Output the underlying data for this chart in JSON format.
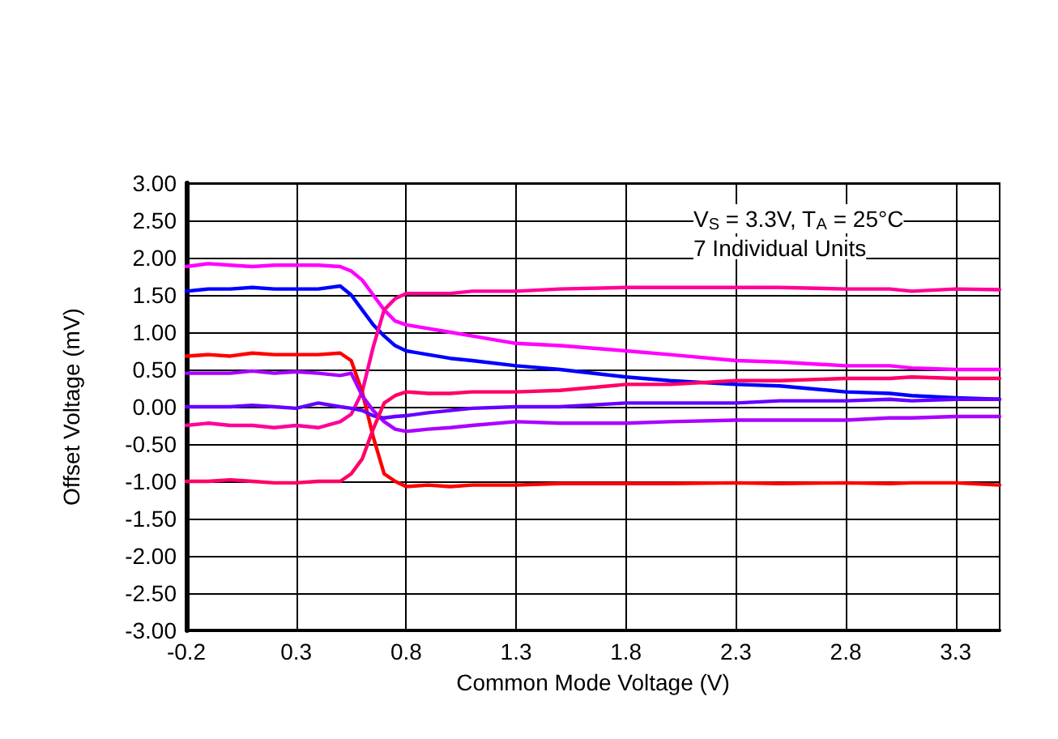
{
  "chart_data": {
    "type": "line",
    "xlabel": "Common Mode Voltage (V)",
    "ylabel": "Offset Voltage (mV)",
    "annotations": [
      "V$_{S}$ = 3.3V, T$_{A}$ = 25°C",
      "7 Individual Units"
    ],
    "xlim": [
      -0.2,
      3.5
    ],
    "xticks": [
      -0.2,
      0.3,
      0.8,
      1.3,
      1.8,
      2.3,
      2.8,
      3.3
    ],
    "ylim": [
      -3,
      3
    ],
    "yticks": [
      {
        "value": -3,
        "label": "-3.00"
      },
      {
        "value": -2.5,
        "label": "-2.50"
      },
      {
        "value": -2,
        "label": "-2.00"
      },
      {
        "value": -1.5,
        "label": "-1.50"
      },
      {
        "value": -1,
        "label": "-1.00"
      },
      {
        "value": -0.5,
        "label": "-0.50"
      },
      {
        "value": 0,
        "label": "0.00"
      },
      {
        "value": 0.5,
        "label": "0.50"
      },
      {
        "value": 1,
        "label": "1.00"
      },
      {
        "value": 1.5,
        "label": "1.50"
      },
      {
        "value": 2,
        "label": "2.00"
      },
      {
        "value": 2.5,
        "label": "2.50"
      },
      {
        "value": 3,
        "label": "3.00"
      }
    ],
    "grid": true,
    "marker": "none",
    "line_style": "solid",
    "x": [
      -0.2,
      -0.1,
      0,
      0.1,
      0.2,
      0.3,
      0.4,
      0.5,
      0.55,
      0.6,
      0.65,
      0.7,
      0.75,
      0.8,
      0.9,
      1.0,
      1.1,
      1.3,
      1.5,
      1.8,
      2.0,
      2.3,
      2.5,
      2.8,
      3.0,
      3.1,
      3.3,
      3.5
    ],
    "series": [
      {
        "color": "#ff00ff",
        "values": [
          1.88,
          1.92,
          1.9,
          1.88,
          1.9,
          1.9,
          1.9,
          1.88,
          1.82,
          1.7,
          1.5,
          1.3,
          1.15,
          1.1,
          1.05,
          1.0,
          0.95,
          0.85,
          0.82,
          0.75,
          0.7,
          0.62,
          0.6,
          0.55,
          0.55,
          0.52,
          0.5,
          0.5
        ]
      },
      {
        "color": "#0000ff",
        "values": [
          1.55,
          1.58,
          1.58,
          1.6,
          1.58,
          1.58,
          1.58,
          1.62,
          1.5,
          1.3,
          1.1,
          0.95,
          0.82,
          0.75,
          0.7,
          0.65,
          0.62,
          0.55,
          0.5,
          0.4,
          0.35,
          0.3,
          0.28,
          0.2,
          0.18,
          0.15,
          0.12,
          0.1
        ]
      },
      {
        "color": "#ff0099",
        "values": [
          -0.25,
          -0.22,
          -0.25,
          -0.25,
          -0.28,
          -0.25,
          -0.28,
          -0.2,
          -0.1,
          0.2,
          0.8,
          1.3,
          1.45,
          1.52,
          1.52,
          1.52,
          1.55,
          1.55,
          1.58,
          1.6,
          1.6,
          1.6,
          1.6,
          1.58,
          1.58,
          1.55,
          1.58,
          1.57
        ]
      },
      {
        "color": "#ff0000",
        "values": [
          0.68,
          0.7,
          0.68,
          0.72,
          0.7,
          0.7,
          0.7,
          0.72,
          0.62,
          0.2,
          -0.4,
          -0.9,
          -1.0,
          -1.07,
          -1.05,
          -1.07,
          -1.05,
          -1.05,
          -1.03,
          -1.03,
          -1.03,
          -1.02,
          -1.03,
          -1.02,
          -1.03,
          -1.02,
          -1.02,
          -1.05
        ]
      },
      {
        "color": "#aa00ff",
        "values": [
          0.45,
          0.45,
          0.45,
          0.48,
          0.45,
          0.47,
          0.45,
          0.42,
          0.45,
          0.15,
          -0.05,
          -0.2,
          -0.3,
          -0.33,
          -0.3,
          -0.28,
          -0.25,
          -0.2,
          -0.22,
          -0.22,
          -0.2,
          -0.18,
          -0.18,
          -0.18,
          -0.15,
          -0.15,
          -0.13,
          -0.13
        ]
      },
      {
        "color": "#6600ff",
        "values": [
          0.0,
          0.0,
          0.0,
          0.02,
          0.0,
          -0.02,
          0.05,
          0.0,
          -0.02,
          -0.05,
          -0.12,
          -0.15,
          -0.13,
          -0.12,
          -0.08,
          -0.05,
          -0.02,
          0.0,
          0.0,
          0.05,
          0.05,
          0.05,
          0.08,
          0.08,
          0.1,
          0.08,
          0.1,
          0.1
        ]
      },
      {
        "color": "#ff0066",
        "values": [
          -1.0,
          -1.0,
          -0.98,
          -1.0,
          -1.02,
          -1.02,
          -1.0,
          -1.0,
          -0.9,
          -0.7,
          -0.3,
          0.05,
          0.15,
          0.2,
          0.18,
          0.18,
          0.2,
          0.2,
          0.22,
          0.3,
          0.3,
          0.35,
          0.35,
          0.38,
          0.38,
          0.4,
          0.38,
          0.38
        ]
      }
    ]
  }
}
